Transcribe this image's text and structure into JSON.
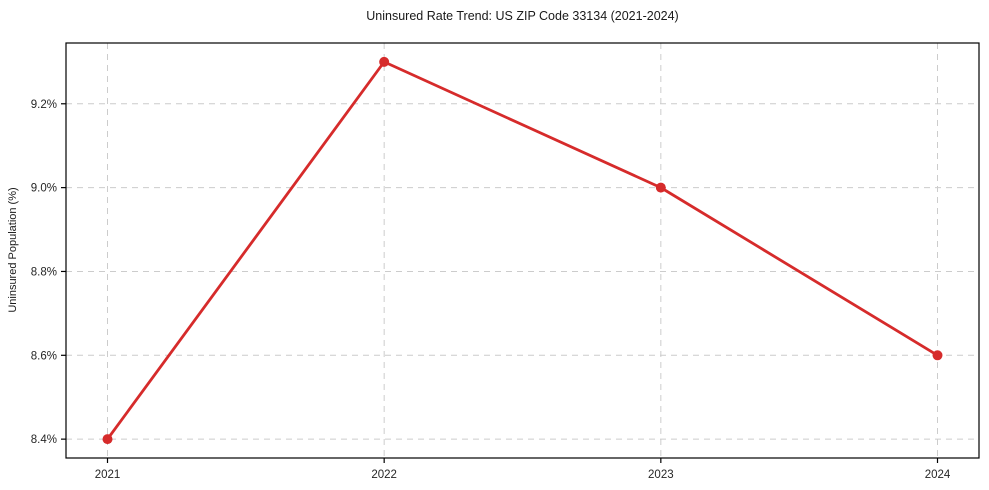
{
  "chart_data": {
    "type": "line",
    "title": "Uninsured Rate Trend: US ZIP Code 33134 (2021-2024)",
    "xlabel": "",
    "ylabel": "Uninsured Population (%)",
    "x": [
      2021,
      2022,
      2023,
      2024
    ],
    "series": [
      {
        "name": "Uninsured rate",
        "values": [
          8.4,
          9.3,
          9.0,
          8.6
        ],
        "color": "#d62b2b",
        "marker": "circle"
      }
    ],
    "xticks": [
      2021,
      2022,
      2023,
      2024
    ],
    "xtick_labels": [
      "2021",
      "2022",
      "2023",
      "2024"
    ],
    "yticks": [
      8.4,
      8.6,
      8.8,
      9.0,
      9.2
    ],
    "ytick_labels": [
      "8.4%",
      "8.6%",
      "8.8%",
      "9.0%",
      "9.2%"
    ],
    "xlim": [
      2020.85,
      2024.15
    ],
    "ylim": [
      8.355,
      9.345
    ],
    "grid": "dashed",
    "grid_color": "#cccccc",
    "axis_color": "#000000",
    "text_color": "#262626",
    "background": "#ffffff",
    "legend": "none"
  }
}
